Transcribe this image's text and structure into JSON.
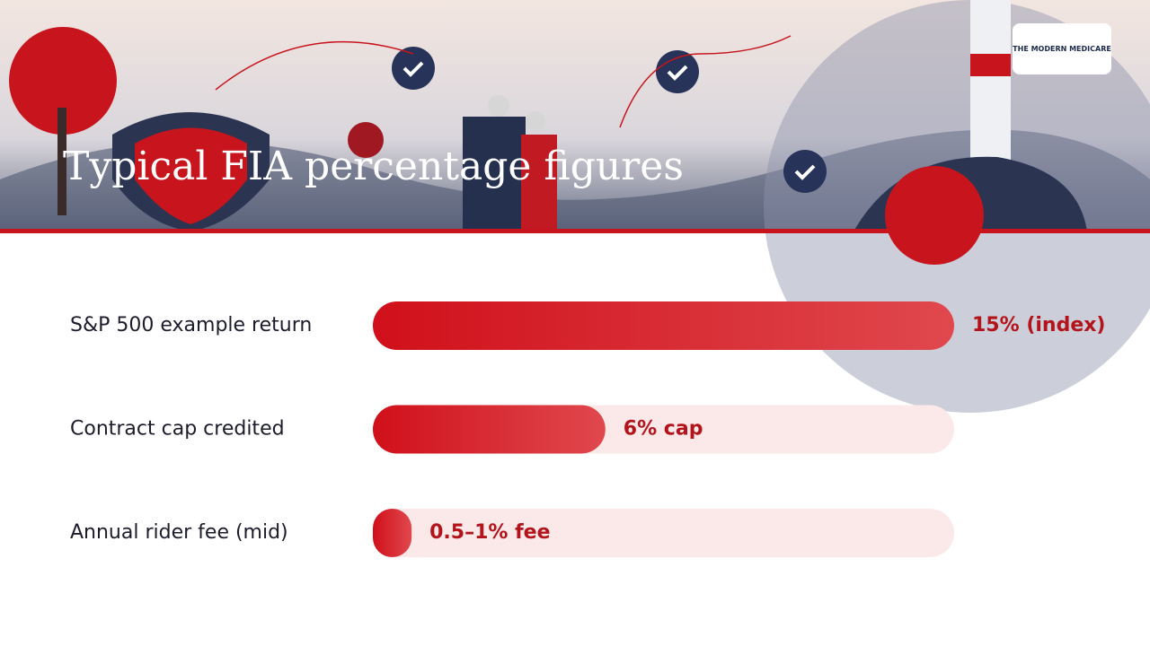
{
  "title": "Typical FIA percentage figures",
  "logo": "THE MODERN MEDICARE",
  "chart_data": {
    "type": "bar",
    "orientation": "horizontal",
    "categories": [
      "S&P 500 example return",
      "Contract cap credited",
      "Annual rider fee (mid)"
    ],
    "values": [
      15,
      6,
      1
    ],
    "value_labels": [
      "15% (index)",
      "6% cap",
      "0.5–1% fee"
    ],
    "xlim": [
      0,
      15
    ],
    "color": "#d0101a",
    "track_color": "#fbe9ea",
    "label_color": "#b3141b"
  }
}
